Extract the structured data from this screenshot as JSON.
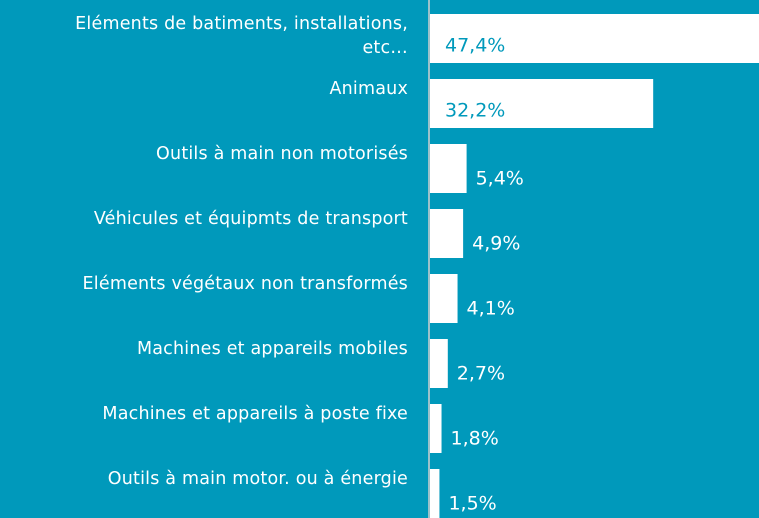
{
  "chart_data": {
    "type": "bar",
    "orientation": "horizontal",
    "categories": [
      "Eléments de batiments, installations,\netc…",
      "Animaux",
      "Outils à main non motorisés",
      "Véhicules et équipmts de transport",
      "Eléments végétaux non transformés",
      "Machines et appareils mobiles",
      "Machines et appareils à poste fixe",
      "Outils à main motor. ou à énergie"
    ],
    "values": [
      47.4,
      32.2,
      5.4,
      4.9,
      4.1,
      2.7,
      1.8,
      1.5
    ],
    "value_labels": [
      "47,4%",
      "32,2%",
      "5,4%",
      "4,9%",
      "4,1%",
      "2,7%",
      "1,8%",
      "1,5%"
    ],
    "color": "#ffffff",
    "background": "#0099bb"
  }
}
